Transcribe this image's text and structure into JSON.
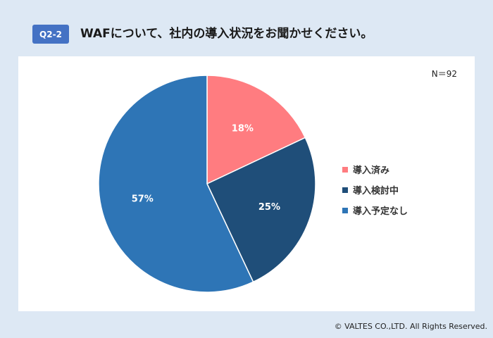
{
  "header": {
    "badge": "Q2-2",
    "title": "WAFについて、社内の導入状況をお聞かせください。"
  },
  "sample_size": "N＝92",
  "colors": {
    "background": "#dde8f4",
    "badge": "#4472c4",
    "slice_1": "#ff7c80",
    "slice_2": "#1f4e79",
    "slice_3": "#2e75b6"
  },
  "chart_data": {
    "type": "pie",
    "title": "",
    "categories": [
      "導入済み",
      "導入検討中",
      "導入予定なし"
    ],
    "values": [
      18,
      25,
      57
    ],
    "data_labels": [
      "18%",
      "25%",
      "57%"
    ],
    "colors": [
      "#ff7c80",
      "#1f4e79",
      "#2e75b6"
    ],
    "start_angle": "12 o'clock",
    "direction": "clockwise",
    "legend_position": "right"
  },
  "footer": {
    "copyright": "© VALTES CO.,LTD. All Rights Reserved."
  }
}
